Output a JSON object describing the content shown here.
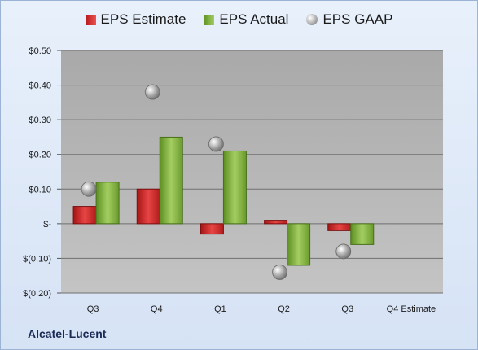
{
  "chart_data": {
    "type": "bar",
    "categories": [
      "Q3",
      "Q4",
      "Q1",
      "Q2",
      "Q3",
      "Q4 Estimate"
    ],
    "series": [
      {
        "name": "EPS Estimate",
        "values": [
          0.05,
          0.1,
          -0.03,
          0.01,
          -0.02,
          null
        ],
        "color": "#d42a2a"
      },
      {
        "name": "EPS Actual",
        "values": [
          0.12,
          0.25,
          0.21,
          -0.12,
          -0.06,
          null
        ],
        "color": "#7fb03d"
      },
      {
        "name": "EPS GAAP",
        "values": [
          0.1,
          0.38,
          0.23,
          -0.14,
          -0.08,
          null
        ],
        "color": "#a8a8a8"
      }
    ],
    "yticks": [
      "$0.50",
      "$0.40",
      "$0.30",
      "$0.20",
      "$0.10",
      "$-",
      "$(0.10)",
      "$(0.20)"
    ],
    "ylim": [
      -0.2,
      0.5
    ],
    "grid": true,
    "legend_position": "top"
  },
  "legend": {
    "estimate": "EPS Estimate",
    "actual": "EPS Actual",
    "gaap": "EPS GAAP"
  },
  "company": "Alcatel-Lucent"
}
